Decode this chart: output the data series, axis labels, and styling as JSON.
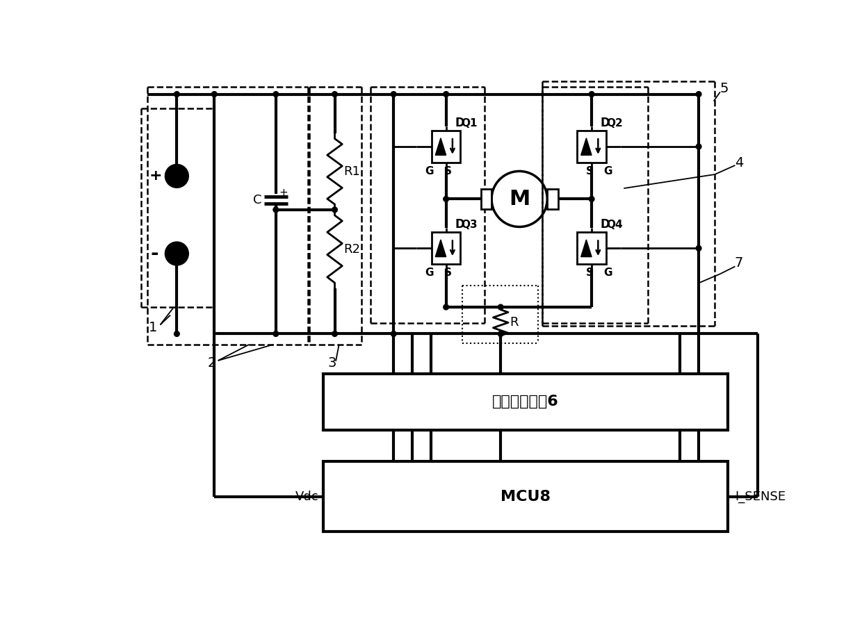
{
  "bg_color": "#ffffff",
  "lc": "#000000",
  "lw": 2.0,
  "tlw": 3.0,
  "fig_w": 12.4,
  "fig_h": 9.24,
  "dpi": 100,
  "half_bridge_label": "半桥驱动模块6",
  "mcu_label": "MCU8",
  "vdc_label": "Vdc",
  "isense_label": "I_SENSE",
  "num1": "1",
  "num2": "2",
  "num3": "3",
  "num4": "4",
  "num5": "5",
  "num7": "7",
  "q1_label": "Q1",
  "q2_label": "Q2",
  "q3_label": "Q3",
  "q4_label": "Q4",
  "d_label": "D",
  "g_label": "G",
  "s_label": "S",
  "r1_label": "R1",
  "r2_label": "R2",
  "r_label": "R",
  "c_label": "C",
  "m_label": "M",
  "plus_label": "+",
  "minus_label": "-"
}
